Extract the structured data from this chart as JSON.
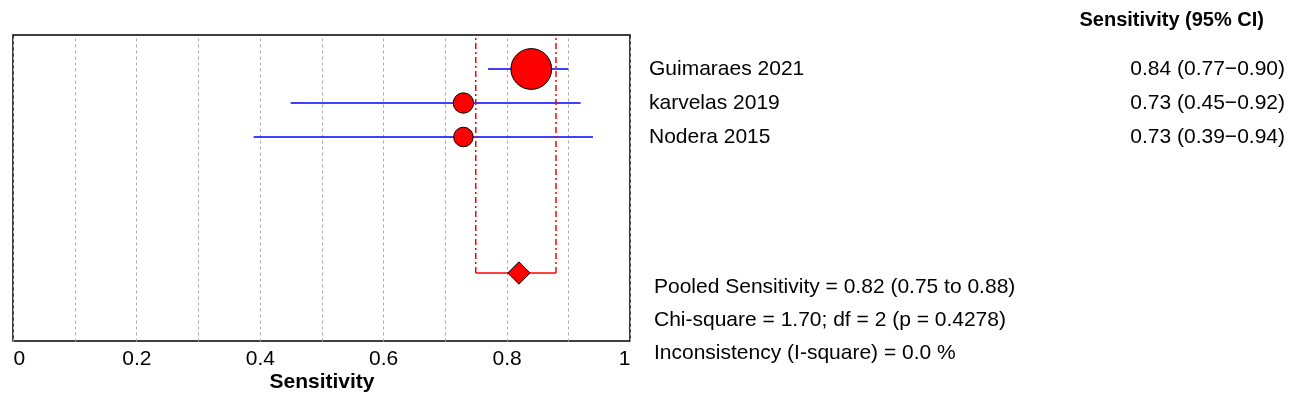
{
  "chart_data": {
    "type": "bubble",
    "orientation": "horizontal",
    "xlabel": "Sensitivity",
    "categories": [
      "Guimaraes  2021",
      "karvelas 2019",
      "Nodera 2015",
      null,
      null,
      null,
      null
    ],
    "series": [
      {
        "type": "bubble",
        "color": "#ff0000",
        "marker": "circle",
        "values": [
          0.84,
          0.73,
          0.73,
          null,
          null,
          null,
          null
        ],
        "sizes": [
          1,
          0.25,
          0.23,
          null,
          null,
          null,
          null
        ],
        "errors": [
          [
            0.77,
            0.9
          ],
          [
            0.45,
            0.92
          ],
          [
            0.39,
            0.94
          ],
          null,
          null,
          null,
          null
        ],
        "value_labels": [
          "0.84 (0.77−0.90)",
          "0.73 (0.45−0.92)",
          "0.73 (0.39−0.94)",
          null,
          null,
          null,
          null
        ]
      },
      {
        "type": "scatter",
        "color": "#ff0000",
        "marker": "diamond",
        "values": [
          null,
          null,
          null,
          null,
          null,
          null,
          0.82
        ],
        "errors": [
          null,
          null,
          null,
          null,
          null,
          null,
          [
            0.75,
            0.88
          ]
        ]
      }
    ],
    "xlim": [
      0,
      1
    ],
    "xticks": [
      0,
      {
        "value": 0.1,
        "label": null
      },
      0.2,
      {
        "value": 0.3,
        "label": null
      },
      0.4,
      {
        "value": 0.5,
        "label": null
      },
      0.6,
      {
        "value": 0.7,
        "label": null
      },
      0.8,
      {
        "value": 0.9,
        "label": null
      },
      1
    ],
    "grid": "x",
    "tick_labels": "x",
    "ref_lines": [
      {
        "axis": "x",
        "value": 0.75,
        "color": "#ff0000",
        "line_style": "dashed"
      },
      {
        "axis": "x",
        "value": 0.88,
        "color": "#ff0000",
        "line_style": "dashed"
      }
    ],
    "annotations": [
      "Sensitivity (95% CI)",
      "Pooled Sensitivity = 0.82 (0.75 to 0.88)",
      "Chi-square = 1.70; df =  2 (p = 0.4278)",
      "Inconsistency (I-square) = 0.0 %"
    ]
  }
}
